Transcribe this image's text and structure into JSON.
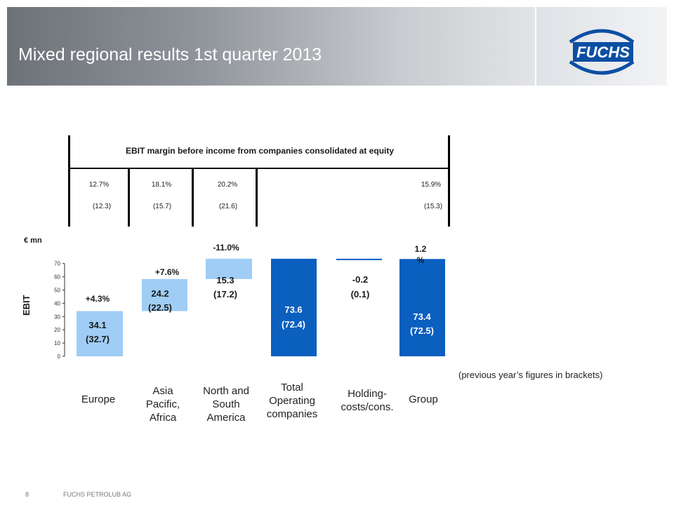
{
  "slide": {
    "title": "Mixed regional results 1st quarter 2013",
    "logo_text": "FUCHS",
    "page_number": "8",
    "footer": "FUCHS PETROLUB AG",
    "note": "(previous year’s figures in brackets)"
  },
  "margin_table": {
    "title": "EBIT margin before income from companies consolidated at equity",
    "current": [
      "12.7%",
      "18.1%",
      "20.2%",
      "15.9%"
    ],
    "previous": [
      "(12.3)",
      "(15.7)",
      "(21.6)",
      "(15.3)"
    ]
  },
  "chart_data": {
    "type": "bar",
    "subtype": "waterfall",
    "unit": "€ mn",
    "ylabel": "EBIT",
    "ylim": [
      0,
      70
    ],
    "yticks": [
      "0",
      "10",
      "20",
      "30",
      "40",
      "50",
      "60",
      "70"
    ],
    "categories": [
      "Europe",
      "Asia Pacific, Africa",
      "North and South America",
      "Total Operating companies",
      "Holding-costs/cons.",
      "Group"
    ],
    "values": [
      34.1,
      24.2,
      15.3,
      73.6,
      -0.2,
      73.4
    ],
    "previous_values": [
      32.7,
      22.5,
      17.2,
      72.4,
      0.1,
      72.5
    ],
    "value_labels": [
      "34.1",
      "24.2",
      "15.3",
      "73.6",
      "-0.2",
      "73.4"
    ],
    "previous_labels": [
      "(32.7)",
      "(22.5)",
      "(17.2)",
      "(72.4)",
      "(0.1)",
      "(72.5)"
    ],
    "changes": [
      "+4.3%",
      "+7.6%",
      "-11.0%",
      "",
      "",
      "1.2 %"
    ],
    "colors": {
      "region": "#9fcdf5",
      "total": "#0a5fbf"
    }
  }
}
